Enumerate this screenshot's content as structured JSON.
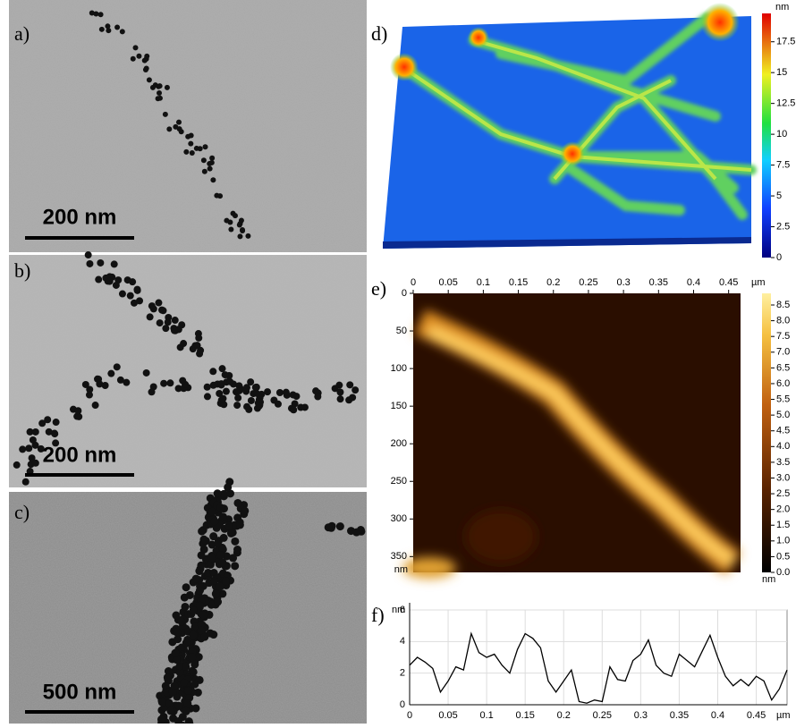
{
  "panels": {
    "a": {
      "label": "a)",
      "scale_bar": "200 nm"
    },
    "b": {
      "label": "b)",
      "scale_bar": "200 nm"
    },
    "c": {
      "label": "c)",
      "scale_bar": "500 nm"
    },
    "d": {
      "label": "d)",
      "colorbar": {
        "unit": "nm",
        "lim": [
          0,
          19.8
        ],
        "ticks": [
          0,
          2.5,
          5,
          7.5,
          10,
          12.5,
          15,
          17.5
        ]
      }
    },
    "e": {
      "label": "e)",
      "x_unit": "µm",
      "y_unit": "nm",
      "xlim": [
        0,
        0.467
      ],
      "xticks": [
        0,
        0.05,
        0.1,
        0.15,
        0.2,
        0.25,
        0.3,
        0.35,
        0.4,
        0.45
      ],
      "ylim": [
        0,
        371
      ],
      "yticks": [
        0,
        50,
        100,
        150,
        200,
        250,
        300,
        350
      ],
      "colorbar": {
        "unit": "nm",
        "lim": [
          0,
          8.87
        ],
        "ticks": [
          {
            "value": 0,
            "label": "0.0"
          },
          0.5,
          {
            "value": 1,
            "label": "1.0"
          },
          1.5,
          {
            "value": 2,
            "label": "2.0"
          },
          2.5,
          {
            "value": 3,
            "label": "3.0"
          },
          3.5,
          {
            "value": 4,
            "label": "4.0"
          },
          4.5,
          {
            "value": 5,
            "label": "5.0"
          },
          5.5,
          {
            "value": 6,
            "label": "6.0"
          },
          6.5,
          {
            "value": 7,
            "label": "7.0"
          },
          7.5,
          {
            "value": 8,
            "label": "8.0"
          },
          8.5
        ]
      }
    }
  },
  "chart_data": {
    "type": "line",
    "label": "f)",
    "x_label": "µm",
    "y_label": "nm",
    "x": [
      0,
      0.01,
      0.02,
      0.03,
      0.04,
      0.05,
      0.06,
      0.07,
      0.08,
      0.09,
      0.1,
      0.11,
      0.12,
      0.13,
      0.14,
      0.15,
      0.16,
      0.17,
      0.18,
      0.19,
      0.2,
      0.21,
      0.22,
      0.23,
      0.24,
      0.25,
      0.26,
      0.27,
      0.28,
      0.29,
      0.3,
      0.31,
      0.32,
      0.33,
      0.34,
      0.35,
      0.36,
      0.37,
      0.38,
      0.39,
      0.4,
      0.41,
      0.42,
      0.43,
      0.44,
      0.45,
      0.46,
      0.47,
      0.48,
      0.49
    ],
    "series": [
      {
        "color": "#000000",
        "values": [
          2.5,
          3,
          2.7,
          2.3,
          0.8,
          1.5,
          2.4,
          2.2,
          4.5,
          3.3,
          3,
          3.2,
          2.5,
          2,
          3.5,
          4.5,
          4.2,
          3.6,
          1.5,
          0.8,
          1.5,
          2.2,
          0.2,
          0.1,
          0.3,
          0.2,
          2.4,
          1.6,
          1.5,
          2.8,
          3.2,
          4.1,
          2.5,
          2,
          1.8,
          3.2,
          2.8,
          2.4,
          3.4,
          4.4,
          3,
          1.8,
          1.2,
          1.6,
          1.2,
          1.8,
          1.5,
          0.3,
          1,
          2.2
        ]
      }
    ],
    "xlim": [
      0,
      0.49
    ],
    "ylim": [
      0,
      6
    ],
    "xticks": [
      0,
      0.05,
      0.1,
      0.15,
      0.2,
      0.25,
      0.3,
      0.35,
      0.4,
      0.45
    ],
    "yticks": [
      0,
      2,
      4,
      6
    ],
    "grid": true
  }
}
